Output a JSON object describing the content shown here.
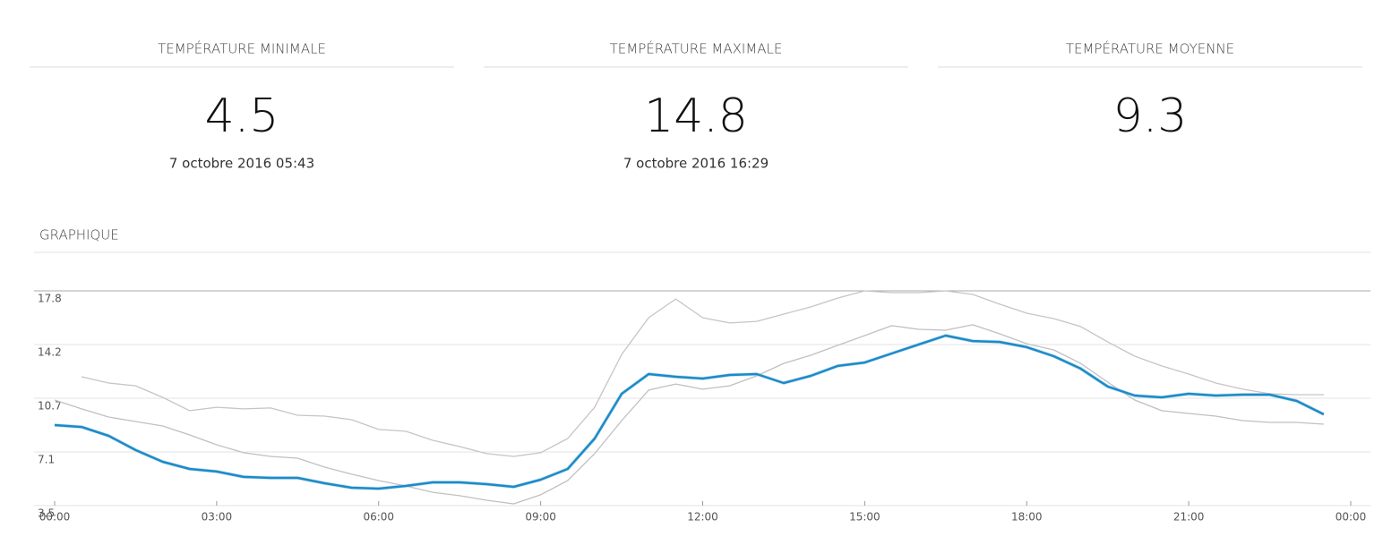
{
  "cards": [
    {
      "title": "TEMPÉRATURE MINIMALE",
      "value": 4.5,
      "date": "7 octobre 2016 05:43"
    },
    {
      "title": "TEMPÉRATURE MAXIMALE",
      "value": 14.8,
      "date": "7 octobre 2016 16:29"
    },
    {
      "title": "TEMPÉRATURE MOYENNE",
      "value": 9.3
    }
  ],
  "section_title": "GRAPHIQUE",
  "chart_data": {
    "type": "line",
    "x": [
      0,
      0.5,
      1,
      1.5,
      2,
      2.5,
      3,
      3.5,
      4,
      4.5,
      5,
      5.5,
      6,
      6.5,
      7,
      7.5,
      8,
      8.5,
      9,
      9.5,
      10,
      10.5,
      11,
      11.5,
      12,
      12.5,
      13,
      13.5,
      14,
      14.5,
      15,
      15.5,
      16,
      16.5,
      17,
      17.5,
      18,
      18.5,
      19,
      19.5,
      20,
      20.5,
      21,
      21.5,
      22,
      22.5,
      23,
      23.5
    ],
    "series": [
      {
        "color": "#cbc2c6",
        "values": [
          null,
          12.08,
          11.66,
          11.48,
          10.71,
          9.82,
          10.05,
          9.94,
          10.0,
          9.52,
          9.46,
          9.22,
          8.57,
          8.45,
          7.85,
          7.43,
          6.96,
          6.78,
          7.02,
          7.97,
          10.05,
          13.57,
          16.01,
          17.26,
          16.01,
          15.66,
          15.77,
          16.25,
          16.73,
          17.32,
          17.8,
          17.68,
          17.68,
          17.8,
          17.56,
          16.91,
          16.31,
          15.95,
          15.42,
          14.4,
          13.45,
          12.8,
          12.26,
          11.66,
          11.25,
          10.95,
          10.89,
          10.89
        ]
      },
      {
        "color": "#c0c0c0",
        "values": [
          10.53,
          9.94,
          9.4,
          9.1,
          8.8,
          8.21,
          7.55,
          7.02,
          6.78,
          6.66,
          6.06,
          5.59,
          5.17,
          4.81,
          4.39,
          4.16,
          3.86,
          3.62,
          4.22,
          5.17,
          6.96,
          9.16,
          11.19,
          11.6,
          11.25,
          11.48,
          12.14,
          12.97,
          13.51,
          14.17,
          14.82,
          15.48,
          15.24,
          15.18,
          15.54,
          14.94,
          14.28,
          13.87,
          12.97,
          11.72,
          10.53,
          9.82,
          9.64,
          9.46,
          9.16,
          9.04,
          9.04,
          8.92
        ]
      },
      {
        "color": "#1a8bc9",
        "values": [
          8.86,
          8.74,
          8.15,
          7.2,
          6.42,
          5.94,
          5.77,
          5.41,
          5.35,
          5.35,
          4.99,
          4.69,
          4.63,
          4.81,
          5.05,
          5.05,
          4.93,
          4.75,
          5.23,
          5.94,
          7.97,
          10.95,
          12.26,
          12.08,
          11.96,
          12.2,
          12.26,
          11.66,
          12.14,
          12.8,
          13.03,
          13.63,
          14.23,
          14.82,
          14.46,
          14.4,
          14.05,
          13.45,
          12.62,
          11.43,
          10.83,
          10.71,
          10.95,
          10.83,
          10.89,
          10.89,
          10.47,
          9.58
        ]
      }
    ],
    "xlim": [
      0,
      24
    ],
    "xticks": [
      {
        "value": 0,
        "label": "00:00"
      },
      {
        "value": 3,
        "label": "03:00"
      },
      {
        "value": 6,
        "label": "06:00"
      },
      {
        "value": 9,
        "label": "09:00"
      },
      {
        "value": 12,
        "label": "12:00"
      },
      {
        "value": 15,
        "label": "15:00"
      },
      {
        "value": 18,
        "label": "18:00"
      },
      {
        "value": 21,
        "label": "21:00"
      },
      {
        "value": 24,
        "label": "00:00"
      }
    ],
    "ylim": [
      3.5,
      17.8
    ],
    "yticks": [
      3.5,
      {
        "value": 7.075,
        "label": "7.1"
      },
      {
        "value": 10.65,
        "label": "10.7"
      },
      {
        "value": 14.225,
        "label": "14.2"
      },
      17.8
    ],
    "grid": true
  }
}
